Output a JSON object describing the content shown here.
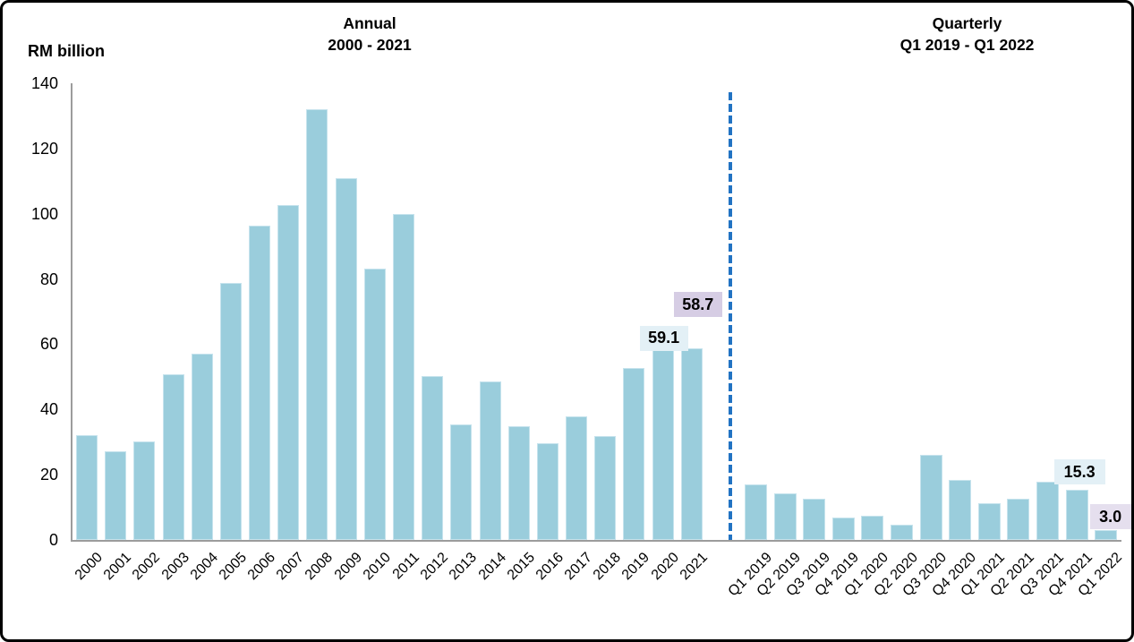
{
  "header": {
    "y_axis_unit": "RM billion",
    "left_title_line1": "Annual",
    "left_title_line2": "2000 - 2021",
    "right_title_line1": "Quarterly",
    "right_title_line2": "Q1 2019 - Q1 2022"
  },
  "chart_data": {
    "type": "bar",
    "ylabel": "RM billion",
    "ylim": [
      0,
      140
    ],
    "yticks": [
      0,
      20,
      40,
      60,
      80,
      100,
      120,
      140
    ],
    "grid": false,
    "legend": "none",
    "bar_color": "#9acddc",
    "axis_color": "#9c9c9c",
    "separator": {
      "style": "dashed",
      "color": "#2273c3",
      "position": "between Annual and Quarterly sections"
    },
    "sections": [
      {
        "name": "Annual",
        "subtitle": "2000 - 2021",
        "categories": [
          "2000",
          "2001",
          "2002",
          "2003",
          "2004",
          "2005",
          "2006",
          "2007",
          "2008",
          "2009",
          "2010",
          "2011",
          "2012",
          "2013",
          "2014",
          "2015",
          "2016",
          "2017",
          "2018",
          "2019",
          "2020",
          "2021"
        ],
        "values": [
          32.0,
          27.3,
          30.2,
          50.8,
          57.0,
          78.8,
          96.3,
          102.7,
          132.0,
          111.0,
          83.2,
          99.9,
          50.1,
          35.3,
          48.6,
          35.0,
          29.6,
          37.9,
          31.8,
          52.8,
          59.1,
          58.7
        ]
      },
      {
        "name": "Quarterly",
        "subtitle": "Q1 2019 - Q1 2022",
        "categories": [
          "Q1 2019",
          "Q2 2019",
          "Q3 2019",
          "Q4 2019",
          "Q1 2020",
          "Q2 2020",
          "Q3 2020",
          "Q4 2020",
          "Q1 2021",
          "Q2 2021",
          "Q3 2021",
          "Q4 2021",
          "Q1 2022"
        ],
        "values": [
          17.0,
          14.3,
          12.6,
          7.0,
          7.5,
          4.8,
          26.1,
          18.5,
          11.3,
          12.7,
          17.8,
          15.3,
          3.0
        ]
      }
    ],
    "callouts": [
      {
        "section": 0,
        "category": "2020",
        "label": "59.1",
        "bg": "#e3f0f6"
      },
      {
        "section": 0,
        "category": "2021",
        "label": "58.7",
        "bg": "#d6cde4"
      },
      {
        "section": 1,
        "category": "Q4 2021",
        "label": "15.3",
        "bg": "#e3f0f6"
      },
      {
        "section": 1,
        "category": "Q1 2022",
        "label": "3.0",
        "bg": "#e5dfee"
      }
    ]
  }
}
